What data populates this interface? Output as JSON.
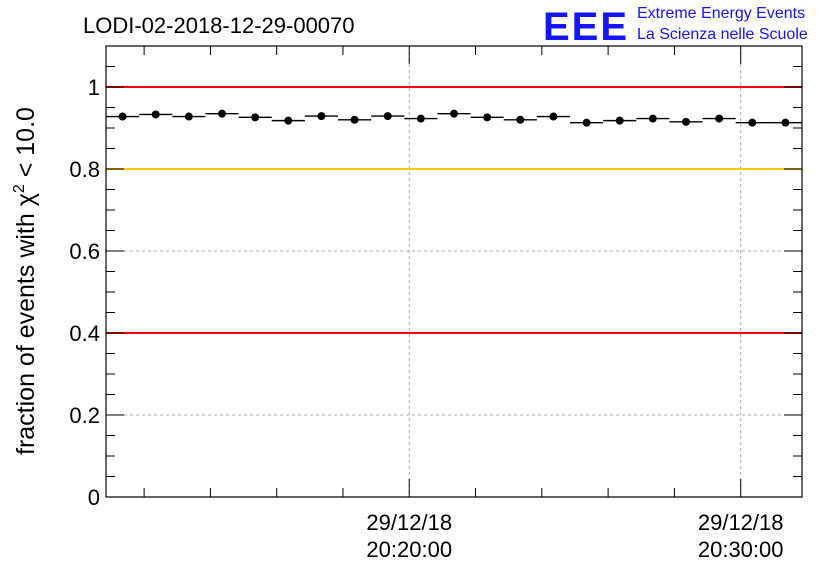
{
  "chart_data": {
    "type": "scatter",
    "title": "LODI-02-2018-12-29-00070",
    "ylabel_main": "fraction of events with χ",
    "ylabel_sup": "2",
    "ylabel_tail": " < 10.0",
    "xlabel": "",
    "xlim": [
      0,
      21
    ],
    "ylim": [
      0,
      1.1
    ],
    "yticks": [
      0,
      0.2,
      0.4,
      0.6,
      0.8,
      1
    ],
    "ytick_labels": [
      "0",
      "0.2",
      "0.4",
      "0.6",
      "0.8",
      "1"
    ],
    "xticks": [
      {
        "x": 9.15,
        "line1": "29/12/18",
        "line2": "20:20:00"
      },
      {
        "x": 19.15,
        "line1": "29/12/18",
        "line2": "20:30:00"
      }
    ],
    "grid": true,
    "reference_lines": [
      {
        "y": 1.0,
        "color": "#ff0000"
      },
      {
        "y": 0.8,
        "color": "#ffcc00"
      },
      {
        "y": 0.4,
        "color": "#ff0000"
      }
    ],
    "series": [
      {
        "name": "fraction",
        "x": [
          0.5,
          1.5,
          2.5,
          3.5,
          4.5,
          5.5,
          6.5,
          7.5,
          8.5,
          9.5,
          10.5,
          11.5,
          12.5,
          13.5,
          14.5,
          15.5,
          16.5,
          17.5,
          18.5,
          19.5,
          20.5
        ],
        "values": [
          0.928,
          0.933,
          0.928,
          0.935,
          0.926,
          0.918,
          0.929,
          0.92,
          0.929,
          0.923,
          0.935,
          0.926,
          0.92,
          0.928,
          0.913,
          0.918,
          0.923,
          0.915,
          0.923,
          0.913,
          0.913
        ]
      }
    ]
  },
  "logo": {
    "mark": "EEE",
    "line1": "Extreme Energy Events",
    "line2": "La Scienza nelle Scuole"
  },
  "colors": {
    "logo": "#1414ff",
    "red_line": "#ff0000",
    "yellow_line": "#ffcc00",
    "grid": "#aaaaaa"
  }
}
